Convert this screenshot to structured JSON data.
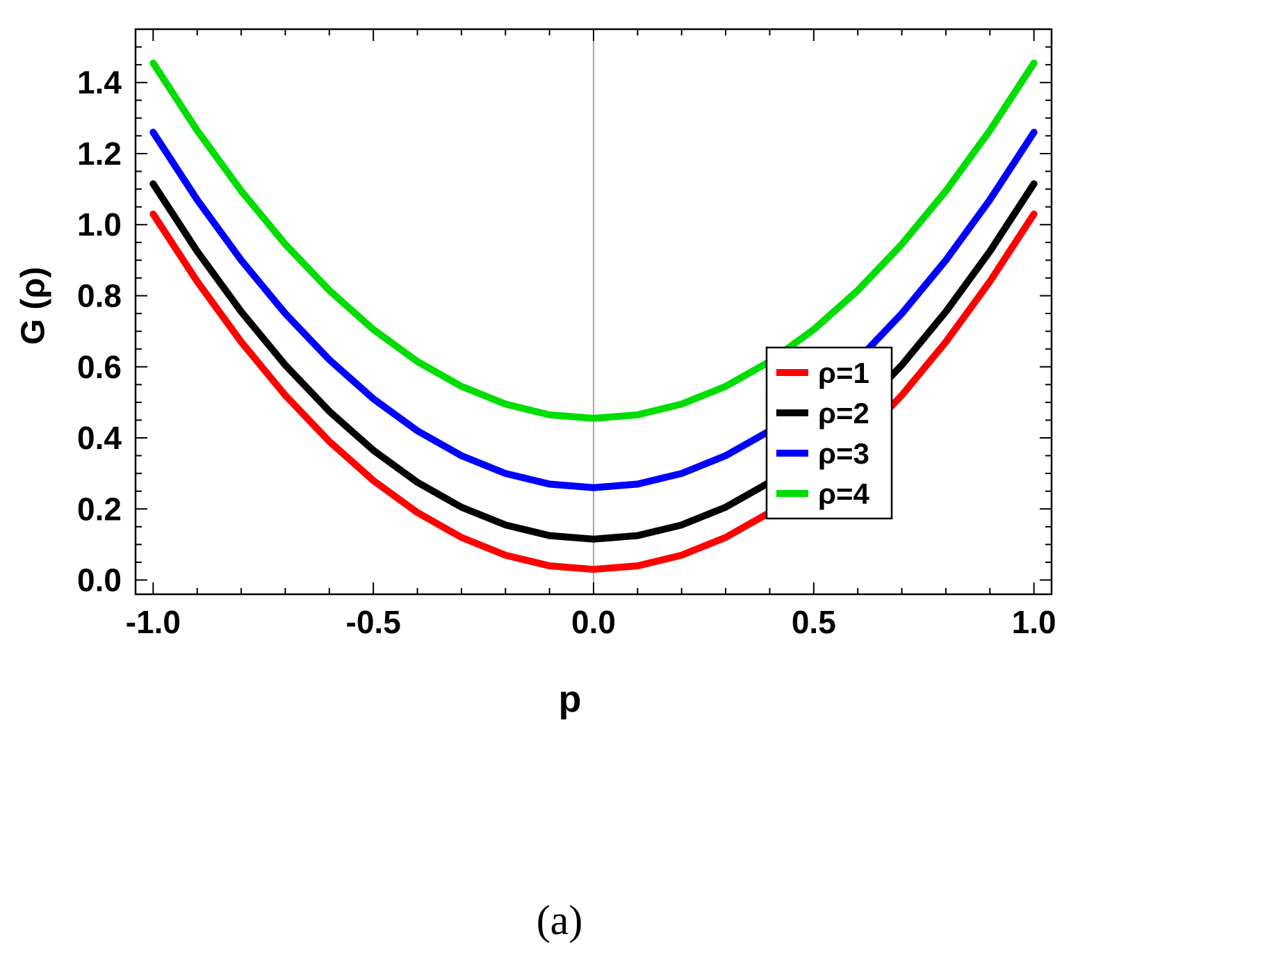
{
  "caption": "(a)",
  "chart_data": {
    "type": "line",
    "title": "",
    "xlabel": "p",
    "ylabel": "G (ρ)",
    "xlim": [
      -1.04,
      1.04
    ],
    "ylim": [
      -0.04,
      1.55
    ],
    "grid": "single vertical axis line at x=0",
    "legend_position": "inside right-center",
    "frame": true,
    "x_ticks": {
      "values": [
        -1.0,
        -0.5,
        0.0,
        0.5,
        1.0
      ],
      "labels": [
        "-1.0",
        "-0.5",
        "0.0",
        "0.5",
        "1.0"
      ]
    },
    "y_ticks": {
      "values": [
        0.0,
        0.2,
        0.4,
        0.6,
        0.8,
        1.0,
        1.2,
        1.4
      ],
      "labels": [
        "0.0",
        "0.2",
        "0.4",
        "0.6",
        "0.8",
        "1.0",
        "1.2",
        "1.4"
      ]
    },
    "x": [
      -1.0,
      -0.9,
      -0.8,
      -0.7,
      -0.6,
      -0.5,
      -0.4,
      -0.3,
      -0.2,
      -0.1,
      0.0,
      0.1,
      0.2,
      0.3,
      0.4,
      0.5,
      0.6,
      0.7,
      0.8,
      0.9,
      1.0
    ],
    "series": [
      {
        "name": "ρ=1",
        "color": "#ff0000",
        "values": [
          1.03,
          0.84,
          0.67,
          0.52,
          0.39,
          0.28,
          0.19,
          0.12,
          0.07,
          0.04,
          0.03,
          0.04,
          0.07,
          0.12,
          0.19,
          0.28,
          0.39,
          0.52,
          0.67,
          0.84,
          1.03
        ]
      },
      {
        "name": "ρ=2",
        "color": "#000000",
        "values": [
          1.115,
          0.925,
          0.755,
          0.605,
          0.475,
          0.365,
          0.275,
          0.205,
          0.155,
          0.125,
          0.115,
          0.125,
          0.155,
          0.205,
          0.275,
          0.365,
          0.475,
          0.605,
          0.755,
          0.925,
          1.115
        ]
      },
      {
        "name": "ρ=3",
        "color": "#0000ff",
        "values": [
          1.26,
          1.07,
          0.9,
          0.75,
          0.62,
          0.51,
          0.42,
          0.35,
          0.3,
          0.27,
          0.26,
          0.27,
          0.3,
          0.35,
          0.42,
          0.51,
          0.62,
          0.75,
          0.9,
          1.07,
          1.26
        ]
      },
      {
        "name": "ρ=4",
        "color": "#00dd00",
        "values": [
          1.455,
          1.265,
          1.095,
          0.945,
          0.815,
          0.705,
          0.615,
          0.545,
          0.495,
          0.465,
          0.455,
          0.465,
          0.495,
          0.545,
          0.615,
          0.705,
          0.815,
          0.945,
          1.095,
          1.265,
          1.455
        ]
      }
    ]
  }
}
